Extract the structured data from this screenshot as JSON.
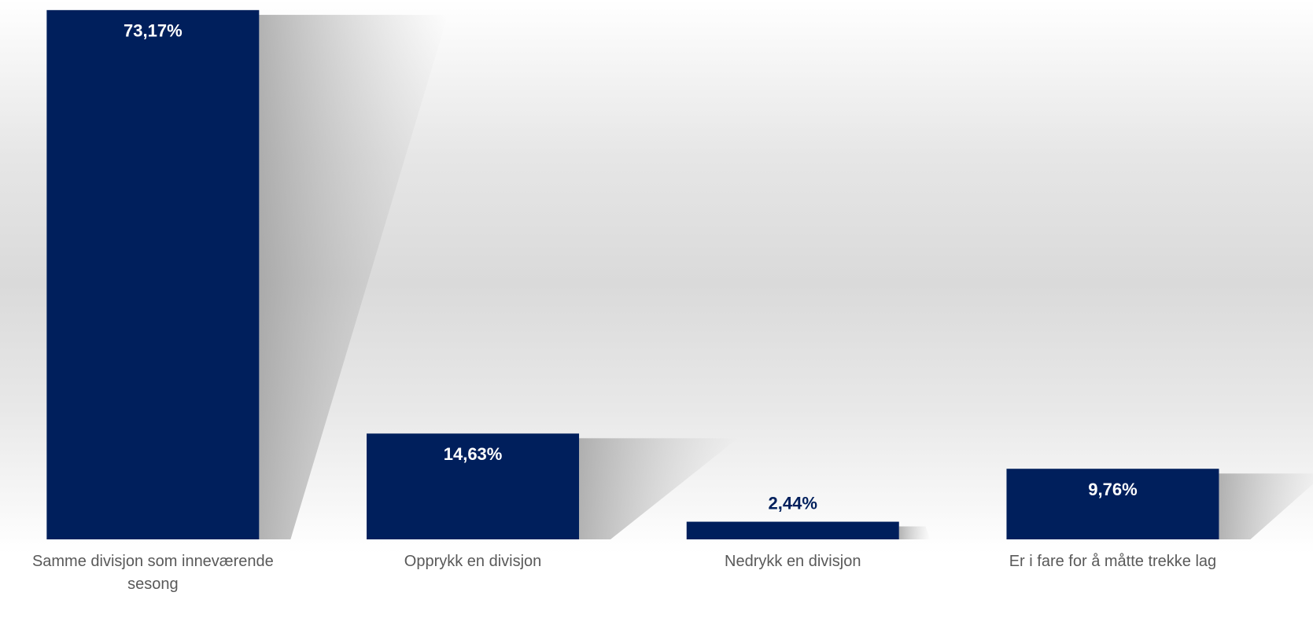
{
  "chart_data": {
    "type": "bar",
    "categories": [
      "Samme divisjon som inneværende sesong",
      "Opprykk en divisjon",
      "Nedrykk en divisjon",
      "Er i fare for å måtte trekke lag"
    ],
    "values": [
      73.17,
      14.63,
      2.44,
      9.76
    ],
    "value_labels": [
      "73,17%",
      "14,63%",
      "2,44%",
      "9,76%"
    ],
    "color": "#001f5c",
    "ylim": [
      0,
      75
    ]
  }
}
